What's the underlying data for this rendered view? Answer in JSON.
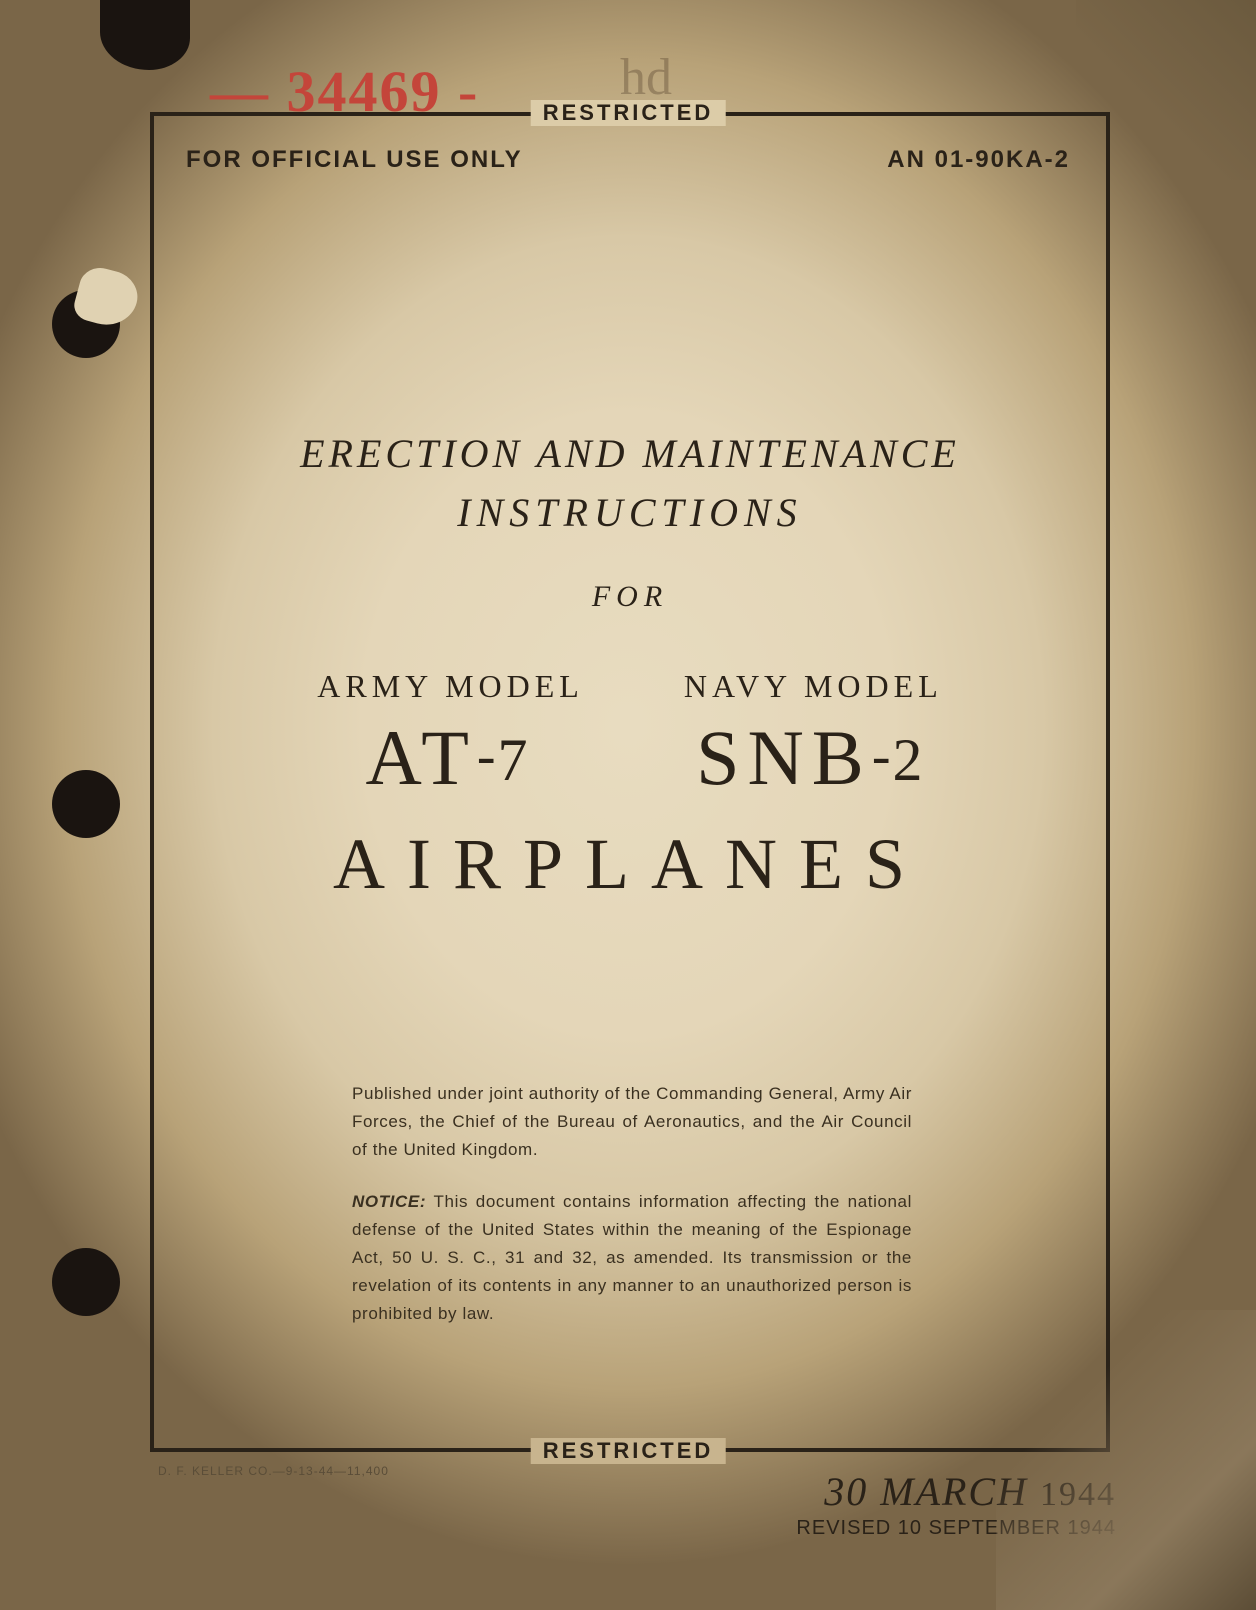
{
  "annotations": {
    "handwritten_number": "— 34469 -",
    "handwritten_initial": "hd"
  },
  "classification": "RESTRICTED",
  "header": {
    "official_use": "FOR OFFICIAL USE ONLY",
    "doc_number": "AN 01-90KA-2"
  },
  "title": {
    "line1": "ERECTION AND MAINTENANCE",
    "line2": "INSTRUCTIONS",
    "for": "FOR",
    "army": {
      "label": "ARMY MODEL",
      "prefix": "AT",
      "dash": "-",
      "num": "7"
    },
    "navy": {
      "label": "NAVY MODEL",
      "prefix": "SNB",
      "dash": "-",
      "num": "2"
    },
    "airplanes": "AIRPLANES"
  },
  "authority": "Published under joint authority of the Commanding General, Army Air Forces, the Chief of the Bureau of Aeronautics, and the Air Council of the United Kingdom.",
  "notice_lead": "NOTICE:",
  "notice_body": " This document contains information affecting the national defense of the United States within the meaning of the Espionage Act, 50 U. S. C., 31 and 32, as amended. Its transmission or the revelation of its contents in any manner to an unauthorized person is prohibited by law.",
  "printer": "D. F. KELLER CO.—9-13-44—11,400",
  "date": {
    "day": "30",
    "month": "MARCH",
    "year": "1944",
    "revised": "REVISED 10 SEPTEMBER 1944"
  },
  "colors": {
    "paper": "#e4d6b8",
    "ink": "#2a2218",
    "red_pencil": "#c4453a"
  }
}
